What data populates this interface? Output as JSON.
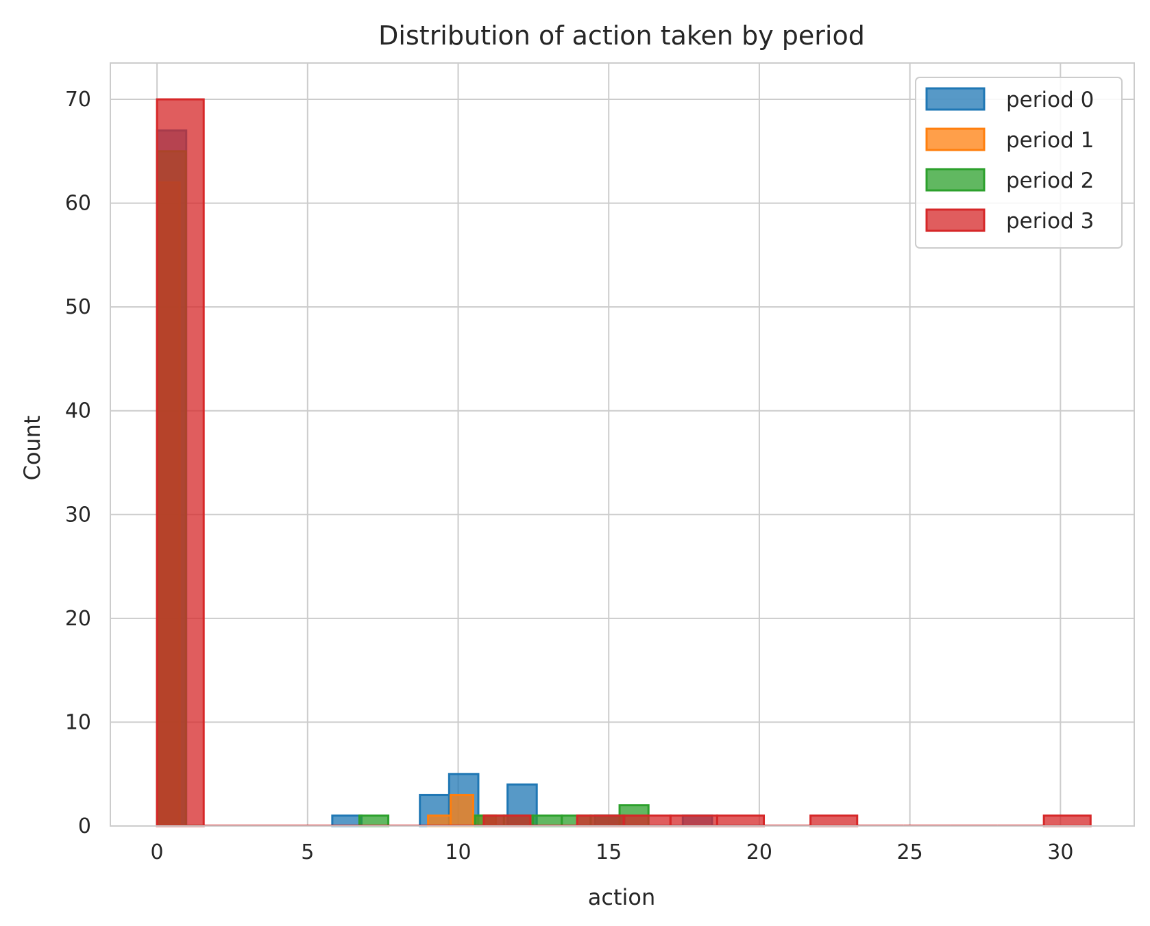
{
  "chart_data": {
    "type": "histogram",
    "title": "Distribution of action taken by period",
    "xlabel": "action",
    "ylabel": "Count",
    "xlim": [
      -1.55,
      32.45
    ],
    "ylim": [
      0,
      73.5
    ],
    "xticks": [
      0,
      5,
      10,
      15,
      20,
      25,
      30
    ],
    "yticks": [
      0,
      10,
      20,
      30,
      40,
      50,
      60,
      70
    ],
    "grid": true,
    "legend_position": "upper right",
    "series": [
      {
        "name": "period 0",
        "color": "#1f77b4",
        "bin_edges": [
          0,
          0.97,
          1.94,
          2.91,
          3.88,
          4.85,
          5.82,
          6.79,
          7.76,
          8.73,
          9.7,
          10.67,
          11.64,
          12.61,
          13.58,
          14.55,
          15.52,
          16.49,
          17.46,
          18.43,
          19.4,
          20.37
        ],
        "counts": [
          67,
          0,
          0,
          0,
          0,
          0,
          1,
          0,
          0,
          3,
          5,
          0,
          4,
          0,
          0,
          1,
          0,
          0,
          1,
          0,
          0
        ]
      },
      {
        "name": "period 1",
        "color": "#ff7f0e",
        "bin_edges": [
          0,
          0.75,
          1.5,
          2.25,
          3.0,
          3.75,
          4.5,
          5.25,
          6.0,
          6.75,
          7.5,
          8.25,
          9.0,
          9.75,
          10.5,
          11.25
        ],
        "counts": [
          62,
          0,
          0,
          0,
          0,
          0,
          0,
          0,
          0,
          0,
          0,
          0,
          1,
          3,
          1
        ]
      },
      {
        "name": "period 2",
        "color": "#2ca02c",
        "bin_edges": [
          0,
          0.96,
          1.92,
          2.88,
          3.84,
          4.8,
          5.76,
          6.72,
          7.68,
          8.64,
          9.6,
          10.56,
          11.52,
          12.48,
          13.44,
          14.4,
          15.36,
          16.32
        ],
        "counts": [
          65,
          0,
          0,
          0,
          0,
          0,
          0,
          1,
          0,
          0,
          0,
          1,
          1,
          1,
          1,
          1,
          2
        ]
      },
      {
        "name": "period 3",
        "color": "#d62728",
        "bin_edges": [
          0,
          1.55,
          3.1,
          4.65,
          6.2,
          7.75,
          9.3,
          10.85,
          12.4,
          13.95,
          15.5,
          17.05,
          18.6,
          20.15,
          21.7,
          23.25,
          24.8,
          26.35,
          27.9,
          29.45,
          31.0
        ],
        "counts": [
          70,
          0,
          0,
          0,
          0,
          0,
          0,
          1,
          0,
          1,
          1,
          1,
          1,
          0,
          1,
          0,
          0,
          0,
          0,
          1
        ]
      }
    ]
  }
}
